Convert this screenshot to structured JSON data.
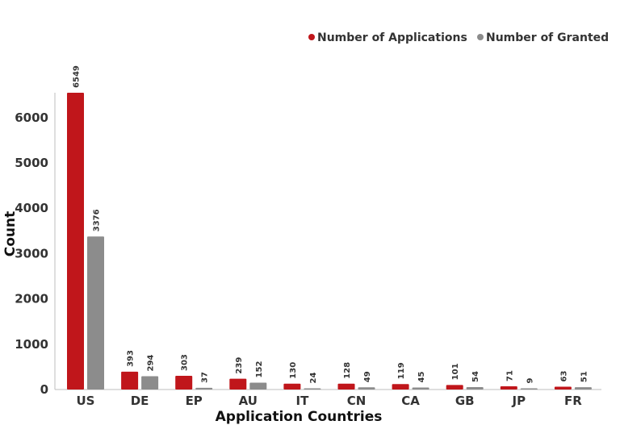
{
  "chart_data": {
    "type": "bar",
    "title": "",
    "xlabel": "Application Countries",
    "ylabel": "Count",
    "categories": [
      "US",
      "DE",
      "EP",
      "AU",
      "IT",
      "CN",
      "CA",
      "GB",
      "JP",
      "FR"
    ],
    "series": [
      {
        "name": "Number of Applications",
        "color": "#C0161B",
        "values": [
          6549,
          393,
          303,
          239,
          130,
          128,
          119,
          101,
          71,
          63
        ]
      },
      {
        "name": "Number of Granted",
        "color": "#8C8C8C",
        "values": [
          3376,
          294,
          37,
          152,
          24,
          49,
          45,
          54,
          9,
          51
        ]
      }
    ],
    "yticks": [
      0,
      1000,
      2000,
      3000,
      4000,
      5000,
      6000
    ],
    "ylim": [
      0,
      6600
    ],
    "legend_position": "top-right",
    "grid": false
  }
}
